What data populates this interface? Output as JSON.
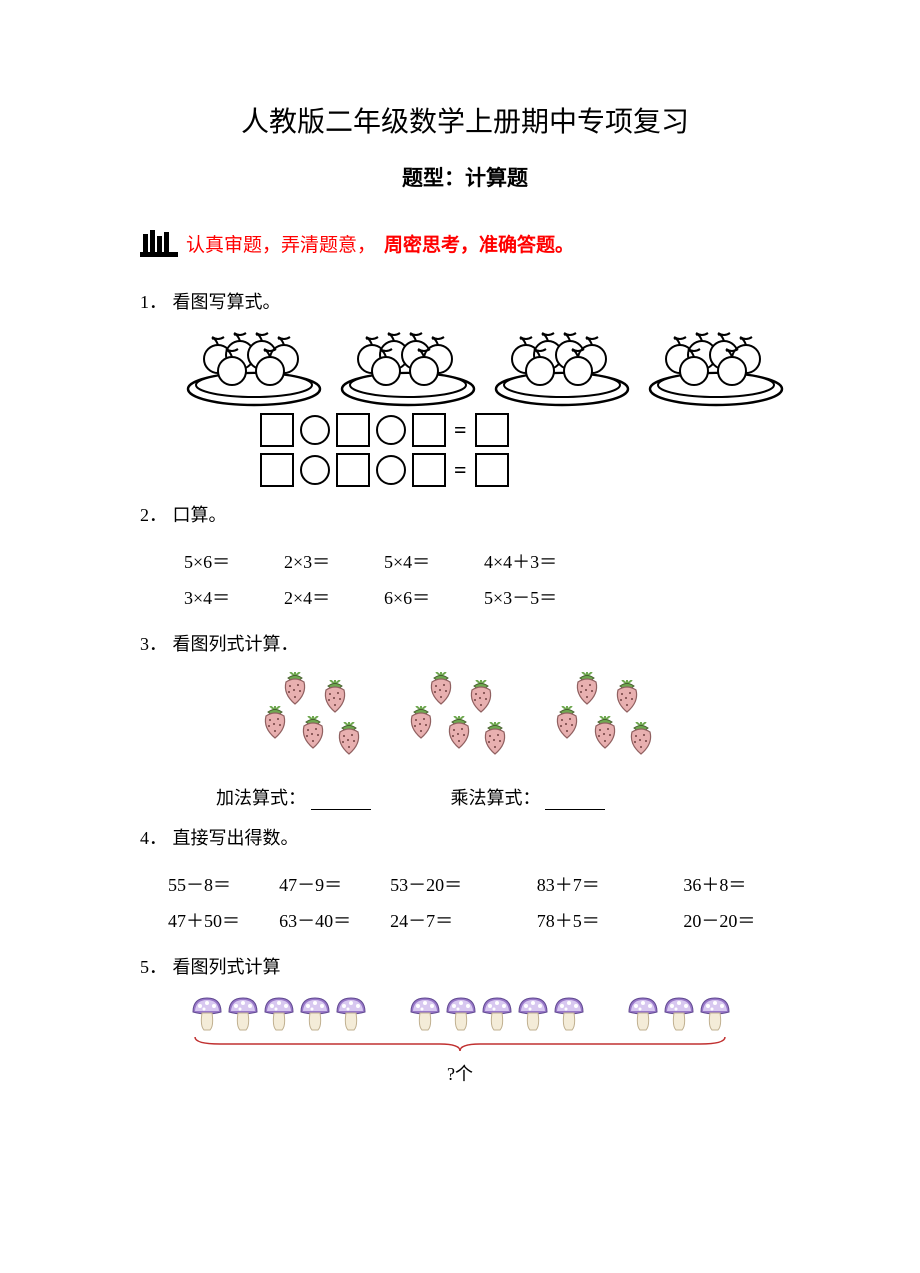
{
  "title": "人教版二年级数学上册期中专项复习",
  "subtitle": "题型：计算题",
  "tip": {
    "part1": "认真审题，弄清题意，",
    "part2": "周密思考，准确答题。"
  },
  "questions": {
    "q1": {
      "num": "1．",
      "text": "看图写算式。",
      "plate_count": 4,
      "fruits_per_plate": 6
    },
    "q2": {
      "num": "2．",
      "text": "口算。",
      "row1": {
        "c1": "5×6＝",
        "c2": "2×3＝",
        "c3": "5×4＝",
        "c4": "4×4＋3＝"
      },
      "row2": {
        "c1": "3×4＝",
        "c2": "2×4＝",
        "c3": "6×6＝",
        "c4": "5×3－5＝"
      }
    },
    "q3": {
      "num": "3．",
      "text": "看图列式计算．",
      "groups": 3,
      "per_group": 5,
      "labels": {
        "add": "加法算式：",
        "mul": "乘法算式："
      }
    },
    "q4": {
      "num": "4．",
      "text": "直接写出得数。",
      "row1": {
        "c1": "55－8＝",
        "c2": "47－9＝",
        "c3": "53－20＝",
        "c4": "83＋7＝",
        "c5": "36＋8＝"
      },
      "row2": {
        "c1": "47＋50＝",
        "c2": "63－40＝",
        "c3": "24－7＝",
        "c4": "78＋5＝",
        "c5": "20－20＝"
      }
    },
    "q5": {
      "num": "5．",
      "text": "看图列式计算",
      "groups": [
        5,
        5,
        3
      ],
      "question": "?个"
    }
  },
  "colors": {
    "tip_red": "#ff0000",
    "straw_pink": "#e8b0b0",
    "straw_leaf": "#6fa850",
    "mush_purple_light": "#d8c8f0",
    "mush_purple_dark": "#9878c8",
    "brace_red": "#c03030"
  }
}
